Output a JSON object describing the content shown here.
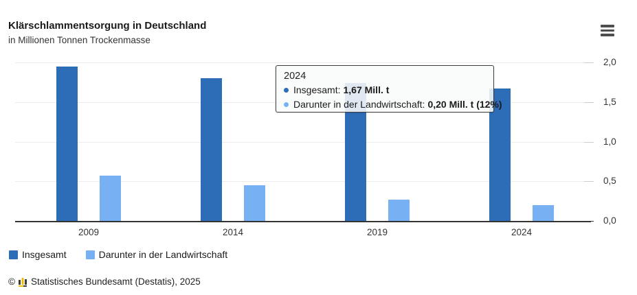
{
  "header": {
    "title": "Klärschlammentsorgung in Deutschland",
    "subtitle": "in Millionen Tonnen Trockenmasse",
    "menu_icon": "hamburger-menu-icon"
  },
  "chart_data": {
    "type": "bar",
    "title": "Klärschlammentsorgung in Deutschland",
    "subtitle": "in Millionen Tonnen Trockenmasse",
    "unit": "Mill. t Trockenmasse",
    "categories": [
      "2009",
      "2014",
      "2019",
      "2024"
    ],
    "series": [
      {
        "name": "Insgesamt",
        "color": "#2d6cb7",
        "values": [
          1.95,
          1.8,
          1.74,
          1.67
        ]
      },
      {
        "name": "Darunter in der Landwirtschaft",
        "color": "#78b0f4",
        "values": [
          0.57,
          0.45,
          0.27,
          0.2
        ]
      }
    ],
    "ylim": [
      0,
      2.0
    ],
    "ytick_values": [
      0,
      0.5,
      1.0,
      1.5,
      2.0
    ],
    "ytick_labels": [
      "0,0",
      "0,5",
      "1,0",
      "1,5",
      "2,0"
    ],
    "yaxis_side": "right",
    "grid": true,
    "grid_color": "#ececec",
    "axis_color": "#333333",
    "tick_color": "#cccccc",
    "legend_position": "bottom-left"
  },
  "tooltip": {
    "year": "2024",
    "rows": [
      {
        "label": "Insgesamt:",
        "value": "1,67 Mill. t",
        "color": "#2d6cb7"
      },
      {
        "label": "Darunter in der Landwirtschaft:",
        "value": "0,20 Mill. t (12%)",
        "color": "#78b0f4"
      }
    ]
  },
  "footer": {
    "copyright": "©",
    "logo_icon": "destatis-logo-icon",
    "source": "Statistisches Bundesamt (Destatis), 2025"
  }
}
